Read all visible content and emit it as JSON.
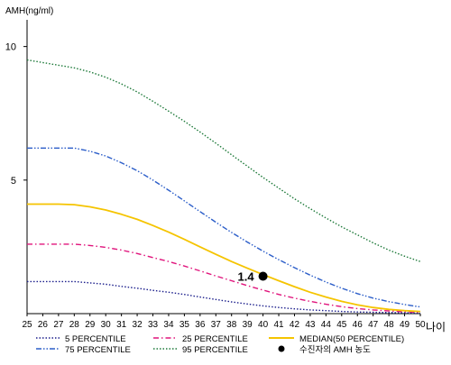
{
  "chart_data": {
    "type": "line",
    "ylabel": "AMH(ng/ml)",
    "xlabel": "나이",
    "x": [
      25,
      26,
      27,
      28,
      29,
      30,
      31,
      32,
      33,
      34,
      35,
      36,
      37,
      38,
      39,
      40,
      41,
      42,
      43,
      44,
      45,
      46,
      47,
      48,
      49,
      50
    ],
    "xlim": [
      25,
      50
    ],
    "ylim": [
      0,
      11
    ],
    "yticks": [
      5,
      10
    ],
    "grid": false,
    "legend_position": "bottom",
    "series": [
      {
        "name": "5 PERCENTILE",
        "color": "#1c1f8c",
        "dash": "dotted",
        "values": [
          1.2,
          1.2,
          1.2,
          1.2,
          1.15,
          1.1,
          1.02,
          0.95,
          0.87,
          0.8,
          0.72,
          0.62,
          0.53,
          0.44,
          0.36,
          0.29,
          0.23,
          0.18,
          0.14,
          0.11,
          0.08,
          0.06,
          0.05,
          0.04,
          0.03,
          0.02
        ]
      },
      {
        "name": "25 PERCENTILE",
        "color": "#e0147c",
        "dash": "dashdot",
        "values": [
          2.6,
          2.6,
          2.6,
          2.6,
          2.55,
          2.48,
          2.38,
          2.25,
          2.1,
          1.95,
          1.78,
          1.6,
          1.41,
          1.23,
          1.05,
          0.88,
          0.72,
          0.58,
          0.46,
          0.35,
          0.26,
          0.19,
          0.14,
          0.1,
          0.07,
          0.05
        ]
      },
      {
        "name": "MEDIAN(50 PERCENTILE)",
        "color": "#f5c400",
        "dash": "solid",
        "values": [
          4.1,
          4.1,
          4.1,
          4.08,
          4.0,
          3.88,
          3.72,
          3.53,
          3.3,
          3.05,
          2.78,
          2.5,
          2.22,
          1.95,
          1.7,
          1.46,
          1.23,
          1.01,
          0.8,
          0.62,
          0.46,
          0.33,
          0.23,
          0.16,
          0.11,
          0.08
        ]
      },
      {
        "name": "75 PERCENTILE",
        "color": "#2c5ec9",
        "dash": "dashdotdot",
        "values": [
          6.2,
          6.2,
          6.2,
          6.2,
          6.08,
          5.9,
          5.65,
          5.35,
          5.0,
          4.62,
          4.22,
          3.82,
          3.42,
          3.04,
          2.68,
          2.34,
          2.02,
          1.72,
          1.44,
          1.18,
          0.95,
          0.75,
          0.58,
          0.45,
          0.34,
          0.25
        ]
      },
      {
        "name": "95 PERCENTILE",
        "color": "#1e7a3a",
        "dash": "dotted",
        "values": [
          9.5,
          9.4,
          9.3,
          9.2,
          9.05,
          8.85,
          8.6,
          8.3,
          7.95,
          7.58,
          7.2,
          6.8,
          6.38,
          5.95,
          5.52,
          5.1,
          4.7,
          4.3,
          3.93,
          3.58,
          3.25,
          2.95,
          2.65,
          2.38,
          2.15,
          1.95
        ]
      }
    ],
    "marker": {
      "name": "수진자의 AMH 농도",
      "x": 40,
      "y": 1.4,
      "label": "1.4",
      "color": "#000000"
    }
  }
}
